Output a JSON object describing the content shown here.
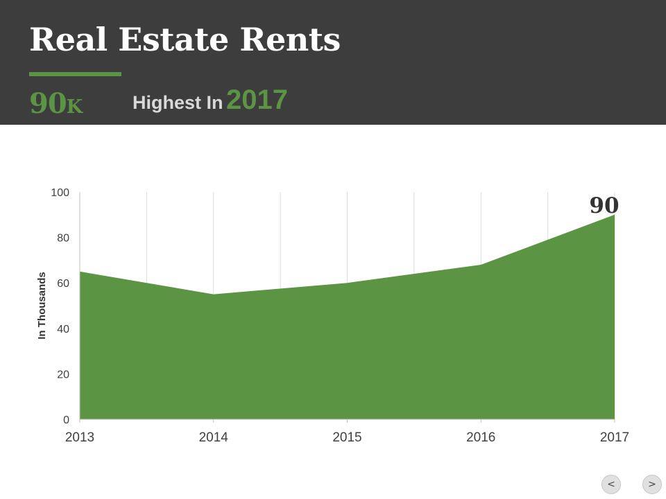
{
  "header": {
    "title": "Real Estate Rents",
    "stat_value": "90",
    "stat_unit": "K",
    "highlight_text": "Highest  In",
    "highlight_year": "2017"
  },
  "colors": {
    "header_bg": "#3d3d3d",
    "accent": "#5b9443"
  },
  "nav": {
    "prev_icon": "chevron-left-icon",
    "prev_label": "<",
    "next_icon": "chevron-right-icon",
    "next_label": ">"
  },
  "chart_data": {
    "type": "area",
    "categories": [
      "2013",
      "2014",
      "2015",
      "2016",
      "2017"
    ],
    "values": [
      65,
      55,
      60,
      68,
      90
    ],
    "ylabel": "In Thousands",
    "ylim": [
      0,
      100
    ],
    "yticks": [
      0,
      20,
      40,
      60,
      80,
      100
    ],
    "data_label": {
      "category": "2017",
      "text": "90"
    },
    "grid": {
      "vertical": true,
      "horizontal": false
    },
    "color": "#5b9443"
  }
}
